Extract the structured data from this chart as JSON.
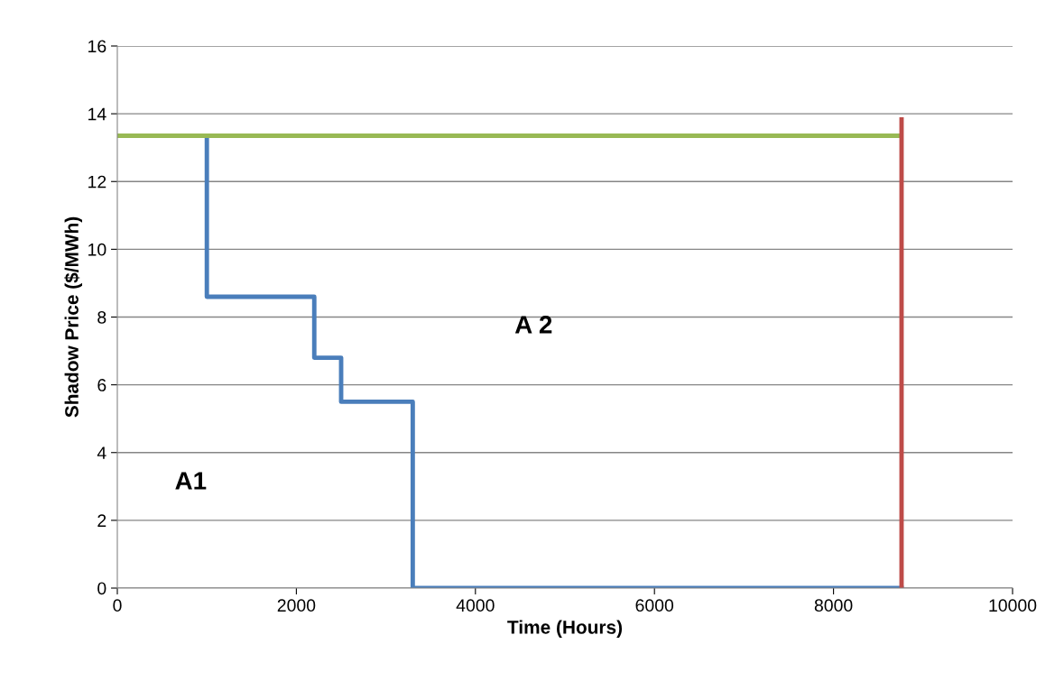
{
  "chart_data": {
    "type": "line",
    "xlabel": "Time (Hours)",
    "ylabel": "Shadow Price ($/MWh)",
    "xlim": [
      0,
      10000
    ],
    "xticks": [
      0,
      2000,
      4000,
      6000,
      8000,
      10000
    ],
    "ylim": [
      0,
      16
    ],
    "yticks": [
      0,
      2,
      4,
      6,
      8,
      10,
      12,
      14,
      16
    ],
    "grid": "y",
    "legend": false,
    "series": [
      {
        "type": "step",
        "color": "#4a7ebb",
        "x": [
          0,
          1000,
          2200,
          2500,
          3300,
          8760
        ],
        "values": [
          13.35,
          8.6,
          6.8,
          5.5,
          0,
          0
        ]
      },
      {
        "color": "#98b954",
        "x": [
          0,
          8760
        ],
        "values": [
          13.35,
          13.35
        ]
      },
      {
        "color": "#be4b48",
        "x": [
          8760,
          8760
        ],
        "values": [
          0,
          13.9
        ]
      }
    ],
    "annotations": [
      "A1",
      "A 2"
    ]
  }
}
